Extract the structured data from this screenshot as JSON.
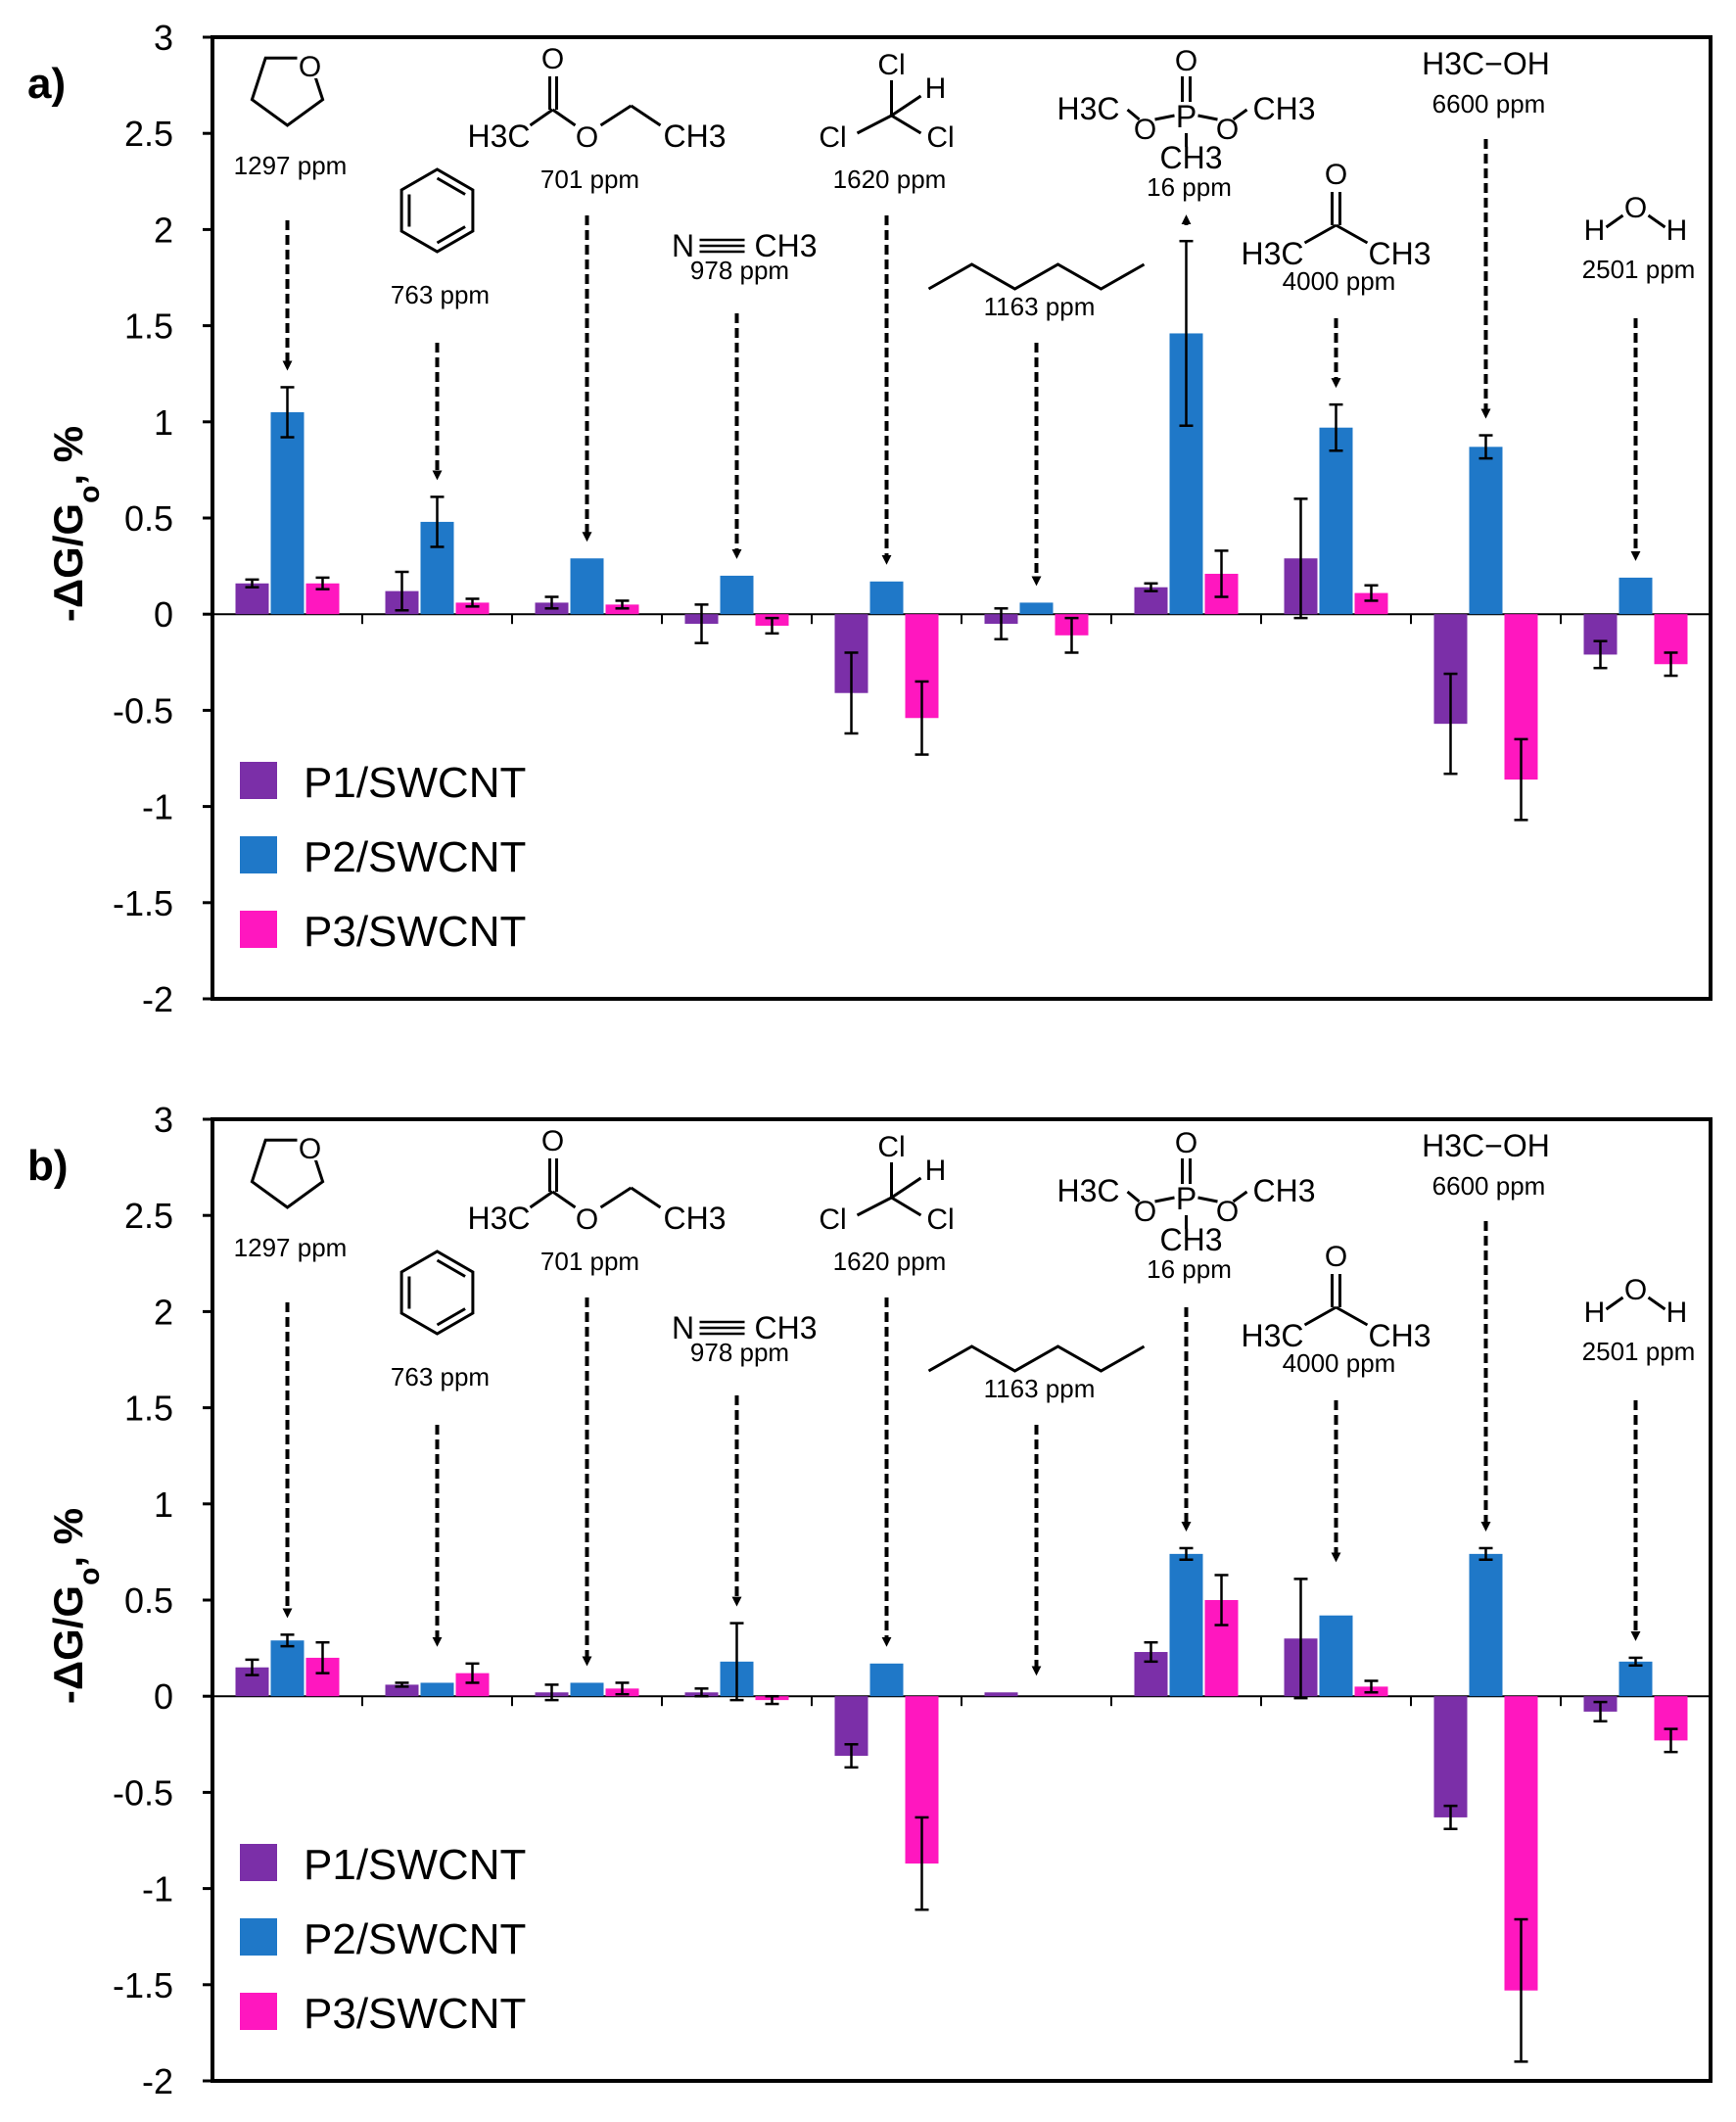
{
  "figure": {
    "ylabel": "-ΔG/G",
    "ylabel_sub": "o",
    "ylabel_suffix": ", %",
    "legend": [
      "P1/SWCNT",
      "P2/SWCNT",
      "P3/SWCNT"
    ],
    "colors": {
      "P1/SWCNT": "#7b2fa8",
      "P2/SWCNT": "#1f78c8",
      "P3/SWCNT": "#ff17bf"
    }
  },
  "chart_data": [
    {
      "type": "bar",
      "panel_label": "a)",
      "ylim": [
        -2,
        3
      ],
      "yticks": [
        -2,
        -1.5,
        -1,
        -0.5,
        0,
        0.5,
        1,
        1.5,
        2,
        2.5,
        3
      ],
      "ylabel": "-ΔG/Go, %",
      "categories": [
        "THF",
        "Benzene",
        "Ethyl acetate",
        "Acetonitrile",
        "Chloroform",
        "Hexane",
        "DMMP",
        "Acetone",
        "Methanol",
        "Water"
      ],
      "concentrations": [
        "1297 ppm",
        "763 ppm",
        "701 ppm",
        "978 ppm",
        "1620 ppm",
        "1163 ppm",
        "16 ppm",
        "4000 ppm",
        "6600 ppm",
        "2501 ppm"
      ],
      "series": [
        {
          "name": "P1/SWCNT",
          "values": [
            0.16,
            0.12,
            0.06,
            -0.05,
            -0.41,
            -0.05,
            0.14,
            0.29,
            -0.57,
            -0.21
          ],
          "errors": [
            0.02,
            0.1,
            0.03,
            0.1,
            0.21,
            0.08,
            0.02,
            0.31,
            0.26,
            0.07
          ]
        },
        {
          "name": "P2/SWCNT",
          "values": [
            1.05,
            0.48,
            0.29,
            0.2,
            0.17,
            0.06,
            1.46,
            0.97,
            0.87,
            0.19
          ],
          "errors": [
            0.13,
            0.13,
            0,
            0,
            0,
            0,
            0.48,
            0.12,
            0.06,
            0
          ]
        },
        {
          "name": "P3/SWCNT",
          "values": [
            0.16,
            0.06,
            0.05,
            -0.06,
            -0.54,
            -0.11,
            0.21,
            0.11,
            -0.86,
            -0.26
          ],
          "errors": [
            0.03,
            0.02,
            0.02,
            0.04,
            0.19,
            0.09,
            0.12,
            0.04,
            0.21,
            0.06
          ]
        }
      ]
    },
    {
      "type": "bar",
      "panel_label": "b)",
      "ylim": [
        -2,
        3
      ],
      "yticks": [
        -2,
        -1.5,
        -1,
        -0.5,
        0,
        0.5,
        1,
        1.5,
        2,
        2.5,
        3
      ],
      "ylabel": "-ΔG/Go, %",
      "categories": [
        "THF",
        "Benzene",
        "Ethyl acetate",
        "Acetonitrile",
        "Chloroform",
        "Hexane",
        "DMMP",
        "Acetone",
        "Methanol",
        "Water"
      ],
      "concentrations": [
        "1297 ppm",
        "763 ppm",
        "701 ppm",
        "978 ppm",
        "1620 ppm",
        "1163 ppm",
        "16 ppm",
        "4000 ppm",
        "6600 ppm",
        "2501 ppm"
      ],
      "series": [
        {
          "name": "P1/SWCNT",
          "values": [
            0.15,
            0.06,
            0.02,
            0.02,
            -0.31,
            0.02,
            0.23,
            0.3,
            -0.63,
            -0.08
          ],
          "errors": [
            0.04,
            0.01,
            0.04,
            0.02,
            0.06,
            0,
            0.05,
            0.31,
            0.06,
            0.05
          ]
        },
        {
          "name": "P2/SWCNT",
          "values": [
            0.29,
            0.07,
            0.07,
            0.18,
            0.17,
            null,
            0.74,
            0.42,
            0.74,
            0.18
          ],
          "errors": [
            0.03,
            0,
            0,
            0.2,
            0,
            0,
            0.03,
            0,
            0.03,
            0.02
          ]
        },
        {
          "name": "P3/SWCNT",
          "values": [
            0.2,
            0.12,
            0.04,
            -0.02,
            -0.87,
            null,
            0.5,
            0.05,
            -1.53,
            -0.23
          ],
          "errors": [
            0.08,
            0.05,
            0.03,
            0.02,
            0.24,
            0,
            0.13,
            0.03,
            0.37,
            0.06
          ]
        }
      ]
    }
  ],
  "molecules": {
    "thf_o": "O",
    "ethyl_acetate": {
      "o": "O",
      "o2": "O",
      "h3c": "H3C",
      "ch3": "CH3"
    },
    "acetonitrile": {
      "n": "N",
      "ch3": "CH3"
    },
    "chloroform": {
      "cl1": "Cl",
      "h": "H",
      "cl2": "Cl",
      "cl3": "Cl"
    },
    "dmmp": {
      "o_top": "O",
      "p": "P",
      "h3c": "H3C",
      "o1": "O",
      "o2": "O",
      "ch3": "CH3",
      "ch3b": "CH3"
    },
    "acetone": {
      "o": "O",
      "h3c": "H3C",
      "ch3": "CH3"
    },
    "methanol": "H3C−OH",
    "water": {
      "h1": "H",
      "o": "O",
      "h2": "H"
    }
  }
}
